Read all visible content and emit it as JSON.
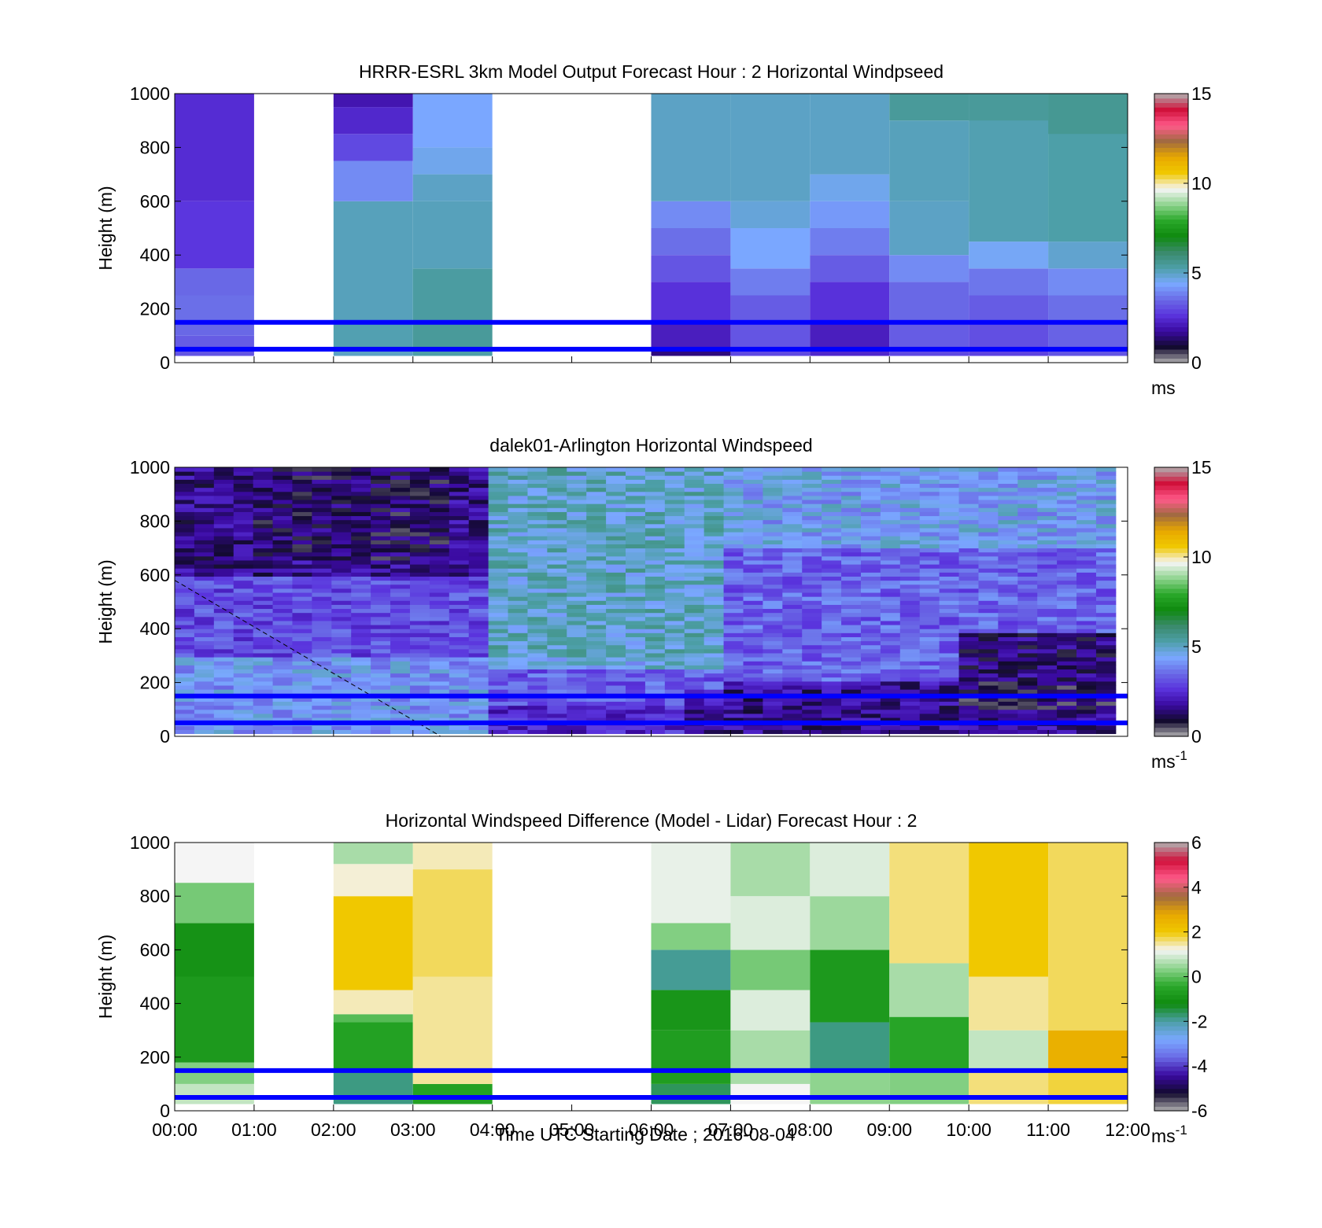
{
  "figure": {
    "xlabel": "Time UTC  Starting Date ; 2016-08-04"
  },
  "colormaps": {
    "speed": [
      "#b0b0b0",
      "#120a2e",
      "#3a0aa0",
      "#5a33dd",
      "#6a6ae6",
      "#7aa8ff",
      "#4d9fa8",
      "#3a8a6a",
      "#0f8a0f",
      "#2aa82a",
      "#8fd48f",
      "#f5f5f5",
      "#f0c800",
      "#e8a800",
      "#a06a40",
      "#ff5a8a",
      "#d0103a",
      "#b0b0b0"
    ],
    "diff": [
      "#b0b0b0",
      "#120a2e",
      "#3a0aa0",
      "#6a6ae6",
      "#7aa8ff",
      "#4d9fa8",
      "#0f8a0f",
      "#2aa82a",
      "#8fd48f",
      "#f5f5f5",
      "#f0c800",
      "#e8a800",
      "#a06a40",
      "#ff5a8a",
      "#d0103a",
      "#b0b0b0"
    ]
  },
  "hlines": [
    150,
    50
  ],
  "hline_color": "#0000ff",
  "chart_data": [
    {
      "type": "heatmap",
      "title": "HRRR-ESRL 3km Model Output   Forecast Hour : 2 Horizontal Windpseed",
      "ylabel": "Height (m)",
      "xlim": [
        0,
        12
      ],
      "ylim": [
        0,
        1000
      ],
      "yticks": [
        "0",
        "200",
        "400",
        "600",
        "800",
        "1000"
      ],
      "xticks": [],
      "colorbar": {
        "range": [
          0,
          15
        ],
        "ticks": [
          "0",
          "5",
          "10",
          "15"
        ],
        "unit": "ms",
        "unit_sup": "",
        "cmap": "speed"
      },
      "columns": [
        {
          "start": 0,
          "end": 1,
          "cells": [
            [
              25,
              50,
              3.2
            ],
            [
              50,
              100,
              3.3
            ],
            [
              100,
              150,
              3.5
            ],
            [
              150,
              250,
              3.6
            ],
            [
              250,
              350,
              3.5
            ],
            [
              350,
              600,
              2.7
            ],
            [
              600,
              1000,
              2.5
            ]
          ]
        },
        {
          "start": 2,
          "end": 3,
          "cells": [
            [
              25,
              50,
              5.0
            ],
            [
              50,
              150,
              5.2
            ],
            [
              150,
              600,
              5.1
            ],
            [
              600,
              750,
              4.0
            ],
            [
              750,
              850,
              3.0
            ],
            [
              850,
              950,
              2.4
            ],
            [
              950,
              1000,
              2.0
            ]
          ]
        },
        {
          "start": 3,
          "end": 4,
          "cells": [
            [
              25,
              50,
              5.3
            ],
            [
              50,
              150,
              5.5
            ],
            [
              150,
              350,
              5.4
            ],
            [
              350,
              600,
              5.1
            ],
            [
              600,
              700,
              5.0
            ],
            [
              700,
              800,
              4.6
            ],
            [
              800,
              1000,
              4.4
            ]
          ]
        },
        {
          "start": 6,
          "end": 7,
          "cells": [
            [
              25,
              50,
              1.5
            ],
            [
              50,
              150,
              2.2
            ],
            [
              150,
              300,
              2.6
            ],
            [
              300,
              400,
              3.2
            ],
            [
              400,
              500,
              3.6
            ],
            [
              500,
              600,
              4.0
            ],
            [
              600,
              1000,
              5.0
            ]
          ]
        },
        {
          "start": 7,
          "end": 8,
          "cells": [
            [
              25,
              50,
              3.0
            ],
            [
              50,
              150,
              3.2
            ],
            [
              150,
              250,
              3.3
            ],
            [
              250,
              350,
              3.8
            ],
            [
              350,
              500,
              4.4
            ],
            [
              500,
              600,
              4.8
            ],
            [
              600,
              1000,
              5.0
            ]
          ]
        },
        {
          "start": 8,
          "end": 9,
          "cells": [
            [
              25,
              50,
              2.4
            ],
            [
              50,
              150,
              2.2
            ],
            [
              150,
              300,
              2.6
            ],
            [
              300,
              400,
              3.3
            ],
            [
              400,
              500,
              3.8
            ],
            [
              500,
              600,
              4.2
            ],
            [
              600,
              700,
              4.6
            ],
            [
              700,
              1000,
              5.0
            ]
          ]
        },
        {
          "start": 9,
          "end": 10,
          "cells": [
            [
              25,
              50,
              3.0
            ],
            [
              50,
              150,
              3.3
            ],
            [
              150,
              300,
              3.5
            ],
            [
              300,
              400,
              4.0
            ],
            [
              400,
              600,
              5.0
            ],
            [
              600,
              900,
              5.1
            ],
            [
              900,
              1000,
              5.5
            ]
          ]
        },
        {
          "start": 10,
          "end": 11,
          "cells": [
            [
              25,
              50,
              2.9
            ],
            [
              50,
              150,
              3.1
            ],
            [
              150,
              250,
              3.3
            ],
            [
              250,
              350,
              3.7
            ],
            [
              350,
              450,
              4.5
            ],
            [
              450,
              1000,
              5.2
            ],
            [
              900,
              1000,
              5.5
            ]
          ]
        },
        {
          "start": 11,
          "end": 12,
          "cells": [
            [
              25,
              50,
              3.2
            ],
            [
              50,
              150,
              3.4
            ],
            [
              150,
              250,
              3.6
            ],
            [
              250,
              350,
              4.0
            ],
            [
              350,
              450,
              4.9
            ],
            [
              450,
              1000,
              5.3
            ],
            [
              850,
              1000,
              5.6
            ]
          ]
        }
      ]
    },
    {
      "type": "heatmap",
      "title": "dalek01-Arlington  Horizontal Windspeed",
      "ylabel": "Height (m)",
      "xlim": [
        0,
        12
      ],
      "ylim": [
        0,
        1000
      ],
      "yticks": [
        "0",
        "200",
        "400",
        "600",
        "800",
        "1000"
      ],
      "xticks": [],
      "colorbar": {
        "range": [
          0,
          15
        ],
        "ticks": [
          "0",
          "5",
          "10",
          "15"
        ],
        "unit": "ms",
        "unit_sup": "-1",
        "cmap": "speed"
      },
      "lidar_field": {
        "x_end": 11.85,
        "y_start": 10,
        "n_cols": 48,
        "n_rows": 66,
        "features": [
          {
            "note_kind": "low_speed_upper_core",
            "x": [
              1.0,
              3.5
            ],
            "y": [
              650,
              1000
            ],
            "value": 1.2
          },
          {
            "note_kind": "high_speed_mid",
            "x": [
              4.0,
              7.0
            ],
            "y": [
              250,
              1000
            ],
            "value": 5.0
          },
          {
            "note_kind": "low_speed_surface",
            "x": [
              6.5,
              11.8
            ],
            "y": [
              10,
              180
            ],
            "value": 1.6
          },
          {
            "note_kind": "low_speed_evening",
            "x": [
              9.8,
              11.8
            ],
            "y": [
              100,
              380
            ],
            "value": 1.0
          }
        ]
      }
    },
    {
      "type": "heatmap",
      "title": "Horizontal Windspeed Difference (Model - Lidar) Forecast Hour : 2",
      "ylabel": "Height (m)",
      "xlim": [
        0,
        12
      ],
      "ylim": [
        0,
        1000
      ],
      "yticks": [
        "0",
        "200",
        "400",
        "600",
        "800",
        "1000"
      ],
      "xticks": [
        "00:00",
        "01:00",
        "02:00",
        "03:00",
        "04:00",
        "05:00",
        "06:00",
        "07:00",
        "08:00",
        "09:00",
        "10:00",
        "11:00",
        "12:00"
      ],
      "colorbar": {
        "range": [
          -6,
          6
        ],
        "ticks": [
          "-6",
          "-4",
          "-2",
          "0",
          "2",
          "4",
          "6"
        ],
        "unit": "ms",
        "unit_sup": "-1",
        "cmap": "diff"
      },
      "columns": [
        {
          "start": 0,
          "end": 1,
          "cells": [
            [
              25,
              100,
              0.8
            ],
            [
              100,
              180,
              0.3
            ],
            [
              180,
              500,
              -0.8
            ],
            [
              500,
              700,
              -1.0
            ],
            [
              700,
              850,
              0.2
            ],
            [
              850,
              1000,
              1.2
            ]
          ]
        },
        {
          "start": 2,
          "end": 3,
          "cells": [
            [
              25,
              150,
              -1.8
            ],
            [
              150,
              330,
              -0.6
            ],
            [
              330,
              360,
              -0.05
            ],
            [
              360,
              450,
              1.4
            ],
            [
              450,
              800,
              2.0
            ],
            [
              800,
              920,
              1.3
            ],
            [
              920,
              1000,
              0.6
            ]
          ]
        },
        {
          "start": 3,
          "end": 4,
          "cells": [
            [
              25,
              100,
              -0.6
            ],
            [
              100,
              500,
              1.5
            ],
            [
              500,
              900,
              1.7
            ],
            [
              900,
              1000,
              1.4
            ]
          ]
        },
        {
          "start": 6,
          "end": 7,
          "cells": [
            [
              25,
              100,
              -1.6
            ],
            [
              100,
              300,
              -0.7
            ],
            [
              300,
              450,
              -0.9
            ],
            [
              450,
              600,
              -1.9
            ],
            [
              600,
              700,
              0.3
            ],
            [
              700,
              1000,
              1.1
            ]
          ]
        },
        {
          "start": 7,
          "end": 8,
          "cells": [
            [
              25,
              100,
              1.2
            ],
            [
              100,
              300,
              0.6
            ],
            [
              300,
              450,
              1.0
            ],
            [
              450,
              600,
              0.2
            ],
            [
              600,
              800,
              1.0
            ],
            [
              800,
              1000,
              0.6
            ]
          ]
        },
        {
          "start": 8,
          "end": 9,
          "cells": [
            [
              25,
              150,
              0.4
            ],
            [
              150,
              330,
              -1.8
            ],
            [
              330,
              600,
              -0.8
            ],
            [
              600,
              800,
              0.5
            ],
            [
              800,
              1000,
              1.0
            ]
          ]
        },
        {
          "start": 9,
          "end": 10,
          "cells": [
            [
              25,
              150,
              0.3
            ],
            [
              150,
              350,
              -0.5
            ],
            [
              350,
              550,
              0.6
            ],
            [
              550,
              1000,
              1.6
            ]
          ]
        },
        {
          "start": 10,
          "end": 11,
          "cells": [
            [
              25,
              150,
              1.6
            ],
            [
              150,
              300,
              0.8
            ],
            [
              300,
              500,
              1.5
            ],
            [
              500,
              1000,
              2.0
            ]
          ]
        },
        {
          "start": 11,
          "end": 12,
          "cells": [
            [
              25,
              150,
              1.8
            ],
            [
              150,
              300,
              2.6
            ],
            [
              300,
              1000,
              1.7
            ]
          ]
        }
      ]
    }
  ]
}
